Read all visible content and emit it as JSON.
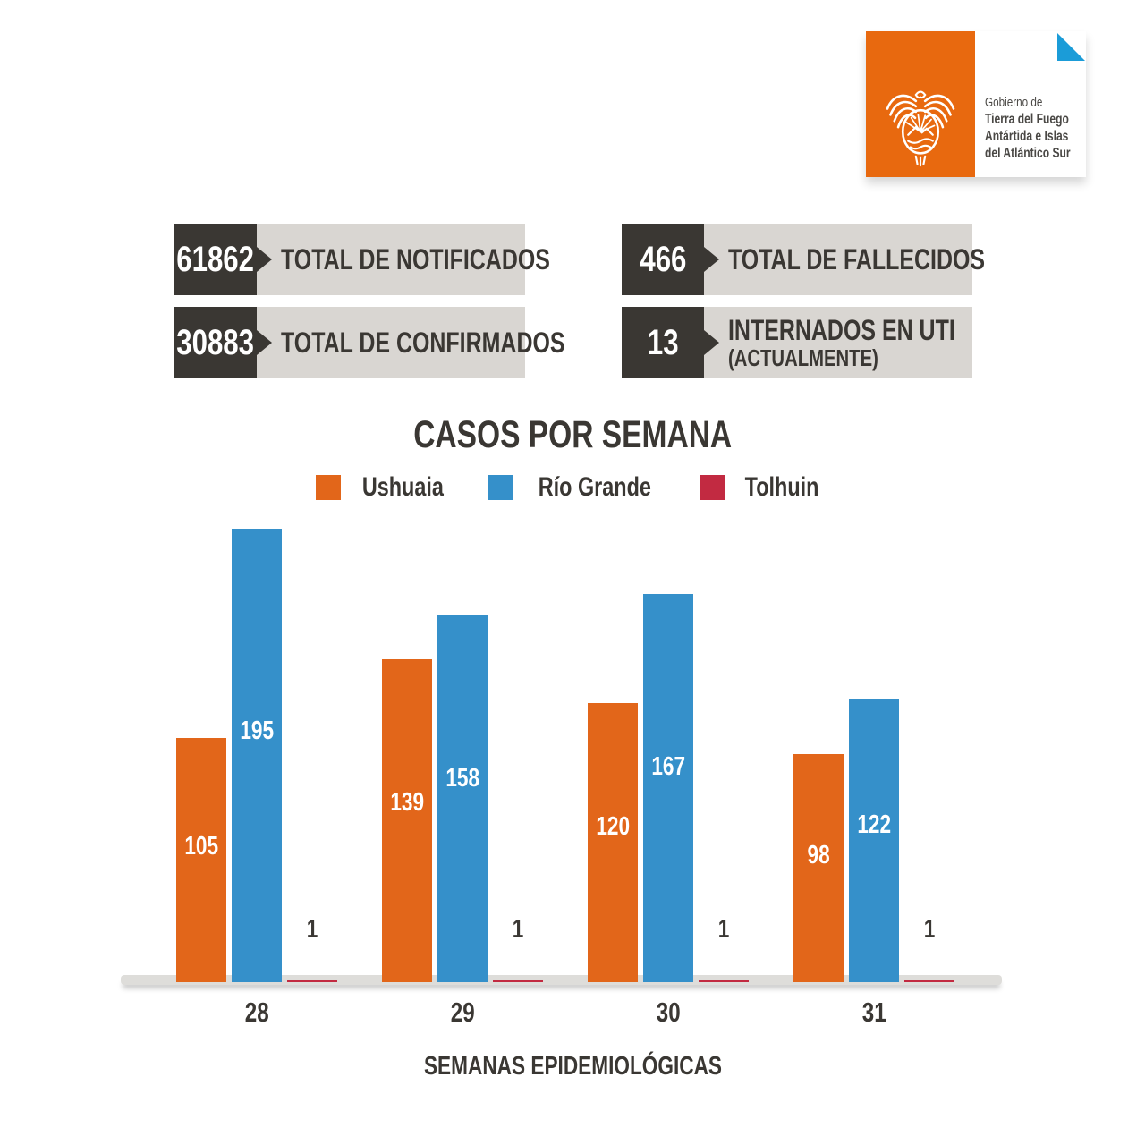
{
  "header_logo": {
    "lines": {
      "l1": "Gobierno de",
      "l2": "Tierra del Fuego",
      "l3": "Antártida e Islas",
      "l4": "del Atlántico Sur"
    },
    "colors": {
      "box_orange": "#E8690F",
      "corner_triangle_blue": "#1B9CD8",
      "emblem_white": "#FFFFFF"
    }
  },
  "stat_boxes": [
    {
      "value": "61862",
      "label": "TOTAL DE NOTIFICADOS",
      "sublabel": ""
    },
    {
      "value": "30883",
      "label": "TOTAL DE CONFIRMADOS",
      "sublabel": ""
    },
    {
      "value": "466",
      "label": "TOTAL DE FALLECIDOS",
      "sublabel": ""
    },
    {
      "value": "13",
      "label": "INTERNADOS EN UTI",
      "sublabel": "(ACTUALMENTE)"
    }
  ],
  "chart_data": {
    "type": "bar",
    "title": "CASOS POR SEMANA",
    "xlabel": "SEMANAS EPIDEMIOLÓGICAS",
    "categories": [
      "28",
      "29",
      "30",
      "31"
    ],
    "series": [
      {
        "name": "Ushuaia",
        "color": "#E2661A",
        "values": [
          105,
          139,
          120,
          98
        ]
      },
      {
        "name": "Río Grande",
        "color": "#3590CA",
        "values": [
          195,
          158,
          167,
          122
        ]
      },
      {
        "name": "Tolhuin",
        "color": "#C22A41",
        "values": [
          1,
          1,
          1,
          1
        ]
      }
    ],
    "legend_position": "top",
    "grid": false,
    "ylim": [
      0,
      200
    ],
    "value_labels": true
  },
  "ui_colors": {
    "dark_box": "#3A3733",
    "light_box": "#D9D6D2",
    "baseline_band": "#DEDDDA",
    "background": "#FFFFFF"
  }
}
